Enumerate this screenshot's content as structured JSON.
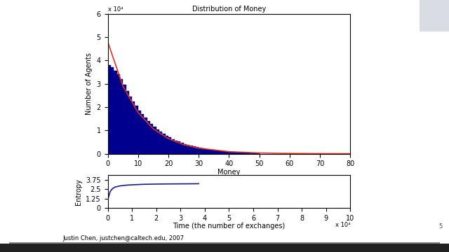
{
  "chart_data": [
    {
      "type": "histogram",
      "title": "Distribution of Money",
      "x_label": "Money",
      "y_label": "Number of Agents",
      "bins": [
        0,
        1,
        2,
        3,
        4,
        5,
        6,
        7,
        8,
        9,
        10,
        11,
        12,
        13,
        14,
        15,
        16,
        17,
        18,
        19,
        20,
        21,
        22,
        23,
        24,
        25,
        26,
        27,
        28,
        29,
        30,
        31,
        32,
        33,
        34,
        35,
        36,
        37,
        38,
        39,
        40,
        41,
        42,
        43,
        44,
        45,
        46,
        47,
        48,
        49,
        50
      ],
      "counts": [
        3.8,
        3.7,
        3.55,
        3.4,
        3.2,
        2.95,
        2.7,
        2.45,
        2.25,
        2.05,
        1.85,
        1.7,
        1.55,
        1.4,
        1.28,
        1.15,
        1.05,
        0.95,
        0.86,
        0.78,
        0.7,
        0.63,
        0.57,
        0.52,
        0.47,
        0.42,
        0.38,
        0.34,
        0.31,
        0.28,
        0.25,
        0.22,
        0.2,
        0.18,
        0.16,
        0.14,
        0.13,
        0.12,
        0.1,
        0.09,
        0.08,
        0.07,
        0.06,
        0.055,
        0.05,
        0.04,
        0.035,
        0.03,
        0.025,
        0.02
      ],
      "color": "#00008f",
      "series": [
        {
          "type": "line",
          "color": "#e03020",
          "x": [
            0,
            5,
            10,
            15,
            20,
            25,
            30,
            40,
            50,
            60,
            70,
            80
          ],
          "values": [
            4.8,
            2.9,
            1.77,
            1.07,
            0.65,
            0.39,
            0.24,
            0.088,
            0.032,
            0.012,
            0.004,
            0.0016
          ]
        }
      ],
      "xlim": [
        0,
        80
      ],
      "xticks": [
        0,
        10,
        20,
        30,
        40,
        50,
        60,
        70,
        80
      ],
      "ylim": [
        0,
        6
      ],
      "yticks": [
        0,
        1,
        2,
        3,
        4,
        5,
        6
      ],
      "grid": false,
      "annotations": [
        "x 10⁴"
      ]
    },
    {
      "type": "line",
      "x_label": "Time (the number of exchanges)",
      "y_label": "Entropy",
      "series": [
        {
          "color": "#1a1a8c",
          "x": [
            0.02,
            0.1,
            0.2,
            0.3,
            0.5,
            0.75,
            1,
            1.5,
            2,
            2.5,
            3,
            3.5,
            3.75
          ],
          "values": [
            1.3,
            2.2,
            2.6,
            2.8,
            2.95,
            3.05,
            3.1,
            3.17,
            3.2,
            3.22,
            3.23,
            3.24,
            3.25
          ]
        }
      ],
      "xlim": [
        0,
        10
      ],
      "xticks": [
        0,
        1,
        2,
        3,
        4,
        5,
        6,
        7,
        8,
        9,
        10
      ],
      "ylim": [
        0,
        4.4
      ],
      "yticks": [
        0,
        1.25,
        2.5,
        3.75
      ],
      "grid": false,
      "annotations": [
        "x 10⁴",
        "Justin Chen, justchen@caltech.edu, 2007",
        "5"
      ]
    }
  ]
}
